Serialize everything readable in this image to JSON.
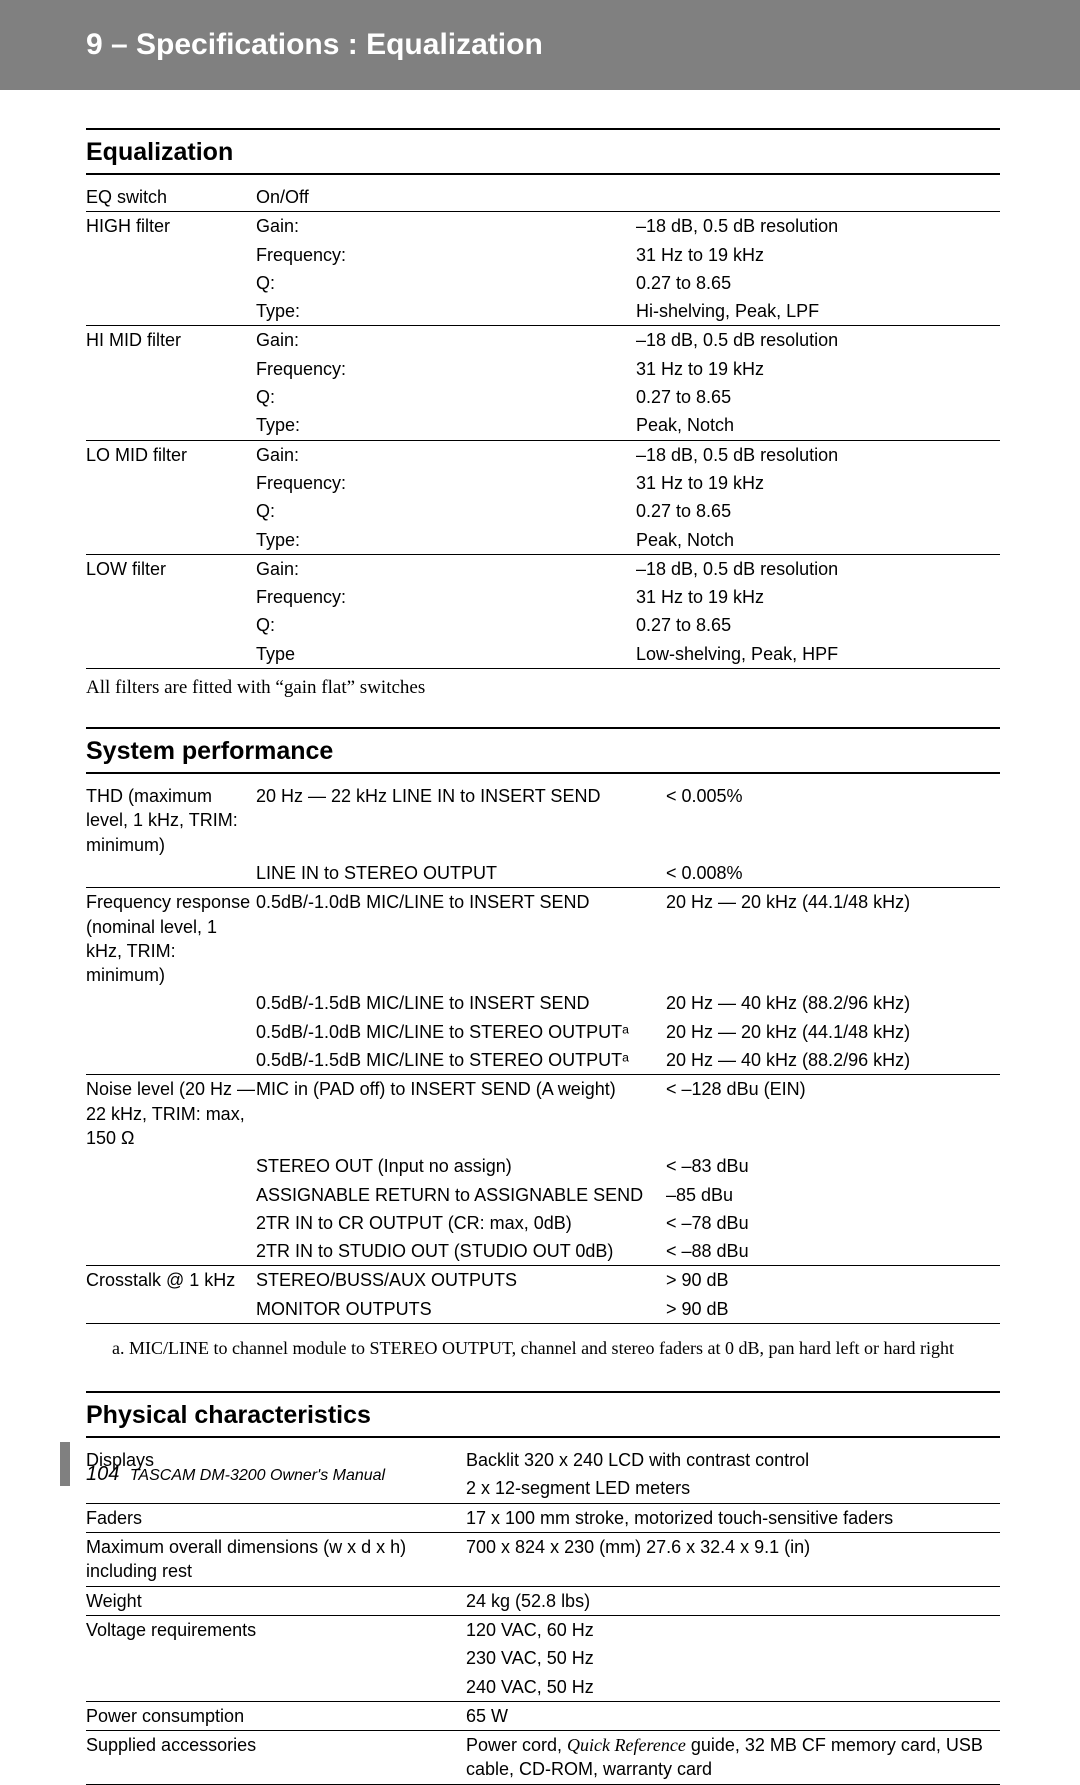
{
  "header": "9 – Specifications : Equalization",
  "sections": {
    "eq": {
      "title": "Equalization",
      "rows": [
        {
          "c1": "EQ switch",
          "c2": "On/Off",
          "c3": ""
        },
        {
          "sep": true,
          "c1": "HIGH filter",
          "c2": "Gain:",
          "c3": "–18 dB, 0.5 dB resolution"
        },
        {
          "c1": "",
          "c2": "Frequency:",
          "c3": "31 Hz to 19 kHz"
        },
        {
          "c1": "",
          "c2": "Q:",
          "c3": "0.27 to 8.65"
        },
        {
          "c1": "",
          "c2": "Type:",
          "c3": "Hi-shelving, Peak, LPF"
        },
        {
          "sep": true,
          "c1": "HI MID filter",
          "c2": "Gain:",
          "c3": "–18 dB, 0.5 dB resolution"
        },
        {
          "c1": "",
          "c2": "Frequency:",
          "c3": "31 Hz to 19 kHz"
        },
        {
          "c1": "",
          "c2": "Q:",
          "c3": "0.27 to 8.65"
        },
        {
          "c1": "",
          "c2": "Type:",
          "c3": "Peak, Notch"
        },
        {
          "sep": true,
          "c1": "LO MID filter",
          "c2": "Gain:",
          "c3": "–18 dB, 0.5 dB resolution"
        },
        {
          "c1": "",
          "c2": "Frequency:",
          "c3": "31 Hz to 19 kHz"
        },
        {
          "c1": "",
          "c2": "Q:",
          "c3": "0.27 to 8.65"
        },
        {
          "c1": "",
          "c2": "Type:",
          "c3": "Peak, Notch"
        },
        {
          "sep": true,
          "c1": "LOW filter",
          "c2": "Gain:",
          "c3": "–18 dB, 0.5 dB resolution"
        },
        {
          "c1": "",
          "c2": "Frequency:",
          "c3": "31 Hz to 19 kHz"
        },
        {
          "c1": "",
          "c2": "Q:",
          "c3": "0.27 to 8.65"
        },
        {
          "c1": "",
          "c2": "Type",
          "c3": "Low-shelving, Peak, HPF"
        }
      ],
      "note": "All filters are fitted with “gain flat” switches"
    },
    "sys": {
      "title": "System performance",
      "rows": [
        {
          "c1": "THD (maximum level, 1 kHz, TRIM: minimum)",
          "c2": "20 Hz — 22 kHz LINE IN to INSERT SEND",
          "c3": "< 0.005%"
        },
        {
          "c1": "",
          "c2": "LINE IN to STEREO OUTPUT",
          "c3": "< 0.008%"
        },
        {
          "sep": true,
          "c1": "Frequency response (nominal level, 1 kHz, TRIM: minimum)",
          "c2": "0.5dB/-1.0dB  MIC/LINE to INSERT SEND",
          "c3": "20 Hz — 20 kHz (44.1/48 kHz)"
        },
        {
          "c1": "",
          "c2": "0.5dB/-1.5dB  MIC/LINE to INSERT SEND",
          "c3": "20 Hz — 40 kHz (88.2/96 kHz)"
        },
        {
          "c1": "",
          "c2": "0.5dB/-1.0dB  MIC/LINE to STEREO OUTPUTᵃ",
          "c3": "20 Hz — 20 kHz (44.1/48 kHz)"
        },
        {
          "c1": "",
          "c2": "0.5dB/-1.5dB  MIC/LINE to STEREO OUTPUTᵃ",
          "c3": "20 Hz — 40 kHz (88.2/96 kHz)"
        },
        {
          "sep": true,
          "c1": "Noise level (20 Hz — 22 kHz, TRIM: max, 150 Ω",
          "c2": "MIC in (PAD off) to INSERT SEND (A weight)",
          "c3": "< –128 dBu (EIN)"
        },
        {
          "c1": "",
          "c2": "STEREO OUT (Input no assign)",
          "c3": "< –83 dBu"
        },
        {
          "c1": "",
          "c2": "ASSIGNABLE RETURN to ASSIGNABLE SEND",
          "c3": "–85 dBu"
        },
        {
          "c1": "",
          "c2": "2TR IN to CR OUTPUT (CR: max, 0dB)",
          "c3": "< –78 dBu"
        },
        {
          "c1": "",
          "c2": "2TR IN to STUDIO OUT (STUDIO OUT 0dB)",
          "c3": "< –88 dBu"
        },
        {
          "sep": true,
          "c1": "Crosstalk @ 1 kHz",
          "c2": "STEREO/BUSS/AUX OUTPUTS",
          "c3": "> 90 dB"
        },
        {
          "c1": "",
          "c2": "MONITOR OUTPUTS",
          "c3": "> 90 dB"
        }
      ],
      "footnote": "a.  MIC/LINE to channel module to STEREO OUTPUT, channel and stereo faders at 0 dB, pan hard left or hard right"
    },
    "phys": {
      "title": "Physical characteristics",
      "rows": [
        {
          "c1": "Displays",
          "c2": "Backlit 320 x 240 LCD with contrast control"
        },
        {
          "c1": "",
          "c2": "2 x 12-segment LED meters"
        },
        {
          "sep": true,
          "c1": "Faders",
          "c2": "17 x 100 mm stroke, motorized touch-sensitive faders"
        },
        {
          "sep": true,
          "c1": "Maximum overall dimensions (w x d x h) including rest",
          "c2": "700 x 824 x 230 (mm) 27.6 x 32.4 x 9.1 (in)"
        },
        {
          "sep": true,
          "c1": "Weight",
          "c2": "24 kg (52.8 lbs)"
        },
        {
          "sep": true,
          "c1": "Voltage requirements",
          "c2": "120 VAC, 60 Hz"
        },
        {
          "c1": "",
          "c2": "230 VAC, 50 Hz"
        },
        {
          "c1": "",
          "c2": "240 VAC, 50 Hz"
        },
        {
          "sep": true,
          "c1": "Power consumption",
          "c2": "65 W"
        },
        {
          "sep": true,
          "c1": "Supplied accessories",
          "c2_html": "Power cord, <span class='ital'>Quick Reference</span> guide, 32 MB CF memory card, USB cable, CD-ROM, warranty card"
        }
      ]
    }
  },
  "footer": {
    "page": "104",
    "text": "TASCAM DM-3200 Owner's Manual"
  }
}
